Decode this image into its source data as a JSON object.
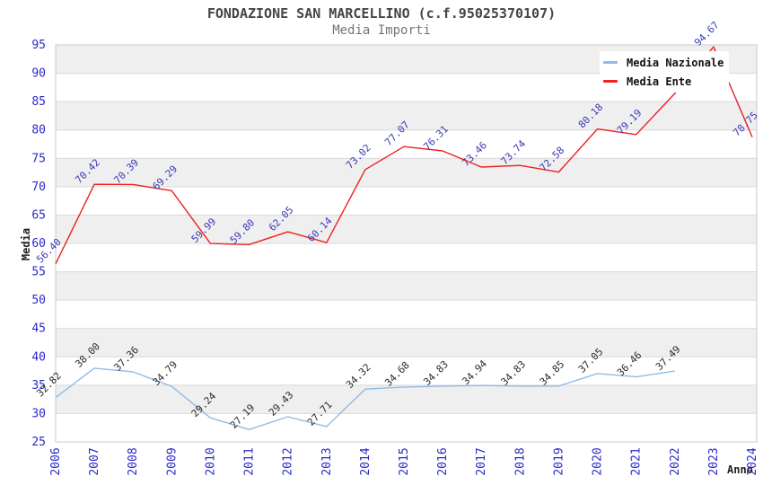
{
  "header": {
    "title": "FONDAZIONE SAN MARCELLINO (c.f.95025370107)",
    "subtitle": "Media Importi"
  },
  "legend": {
    "items": [
      {
        "label": "Media Nazionale",
        "color": "#8fbce6"
      },
      {
        "label": "Media Ente",
        "color": "#ee2020"
      }
    ]
  },
  "axes": {
    "y_title": "Media",
    "x_title": "Anno",
    "tick_color": "#2929cc",
    "y_ticks": [
      25,
      30,
      35,
      40,
      45,
      50,
      55,
      60,
      65,
      70,
      75,
      80,
      85,
      90,
      95
    ]
  },
  "chart_data": {
    "type": "line",
    "title": "FONDAZIONE SAN MARCELLINO (c.f.95025370107)",
    "subtitle": "Media Importi",
    "xlabel": "Anno",
    "ylabel": "Media",
    "x": [
      2006,
      2007,
      2008,
      2009,
      2010,
      2011,
      2012,
      2013,
      2014,
      2015,
      2016,
      2017,
      2018,
      2019,
      2020,
      2021,
      2022,
      2023,
      2024
    ],
    "ylim": [
      25,
      95
    ],
    "y_step": 5,
    "grid": "horizontal-bands-alternating",
    "legend_position": "top-right",
    "series": [
      {
        "name": "Media Nazionale",
        "color": "#8fbce6",
        "label_color": "#2b2b2b",
        "values": [
          32.82,
          38.0,
          37.36,
          34.79,
          29.24,
          27.19,
          29.43,
          27.71,
          34.32,
          34.68,
          34.83,
          34.94,
          34.83,
          34.85,
          37.05,
          36.46,
          37.49,
          null,
          null
        ]
      },
      {
        "name": "Media Ente",
        "color": "#ee2020",
        "label_color": "#3a3ab8",
        "values": [
          56.4,
          70.42,
          70.39,
          69.29,
          59.99,
          59.8,
          62.05,
          60.14,
          73.02,
          77.07,
          76.31,
          73.46,
          73.74,
          72.58,
          80.18,
          79.19,
          86.45,
          94.67,
          78.75
        ]
      }
    ]
  }
}
